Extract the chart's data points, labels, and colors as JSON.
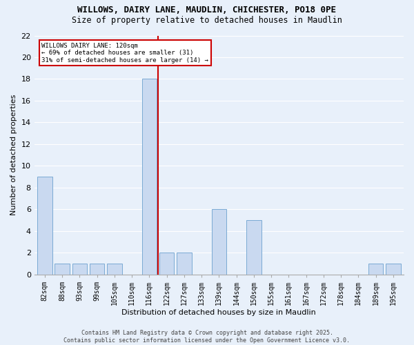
{
  "title1": "WILLOWS, DAIRY LANE, MAUDLIN, CHICHESTER, PO18 0PE",
  "title2": "Size of property relative to detached houses in Maudlin",
  "xlabel": "Distribution of detached houses by size in Maudlin",
  "ylabel": "Number of detached properties",
  "categories": [
    "82sqm",
    "88sqm",
    "93sqm",
    "99sqm",
    "105sqm",
    "110sqm",
    "116sqm",
    "122sqm",
    "127sqm",
    "133sqm",
    "139sqm",
    "144sqm",
    "150sqm",
    "155sqm",
    "161sqm",
    "167sqm",
    "172sqm",
    "178sqm",
    "184sqm",
    "189sqm",
    "195sqm"
  ],
  "values": [
    9,
    1,
    1,
    1,
    1,
    0,
    18,
    2,
    2,
    0,
    6,
    0,
    5,
    0,
    0,
    0,
    0,
    0,
    0,
    1,
    1
  ],
  "bar_color": "#c9d9f0",
  "bar_edge_color": "#7aaad4",
  "bg_color": "#e8f0fa",
  "grid_color": "#ffffff",
  "annotation_line1": "WILLOWS DAIRY LANE: 120sqm",
  "annotation_line2": "← 69% of detached houses are smaller (31)",
  "annotation_line3": "31% of semi-detached houses are larger (14) →",
  "annotation_box_color": "#ffffff",
  "annotation_border_color": "#cc0000",
  "vline_color": "#cc0000",
  "footer": "Contains HM Land Registry data © Crown copyright and database right 2025.\nContains public sector information licensed under the Open Government Licence v3.0.",
  "ylim": [
    0,
    22
  ],
  "yticks": [
    0,
    2,
    4,
    6,
    8,
    10,
    12,
    14,
    16,
    18,
    20,
    22
  ]
}
